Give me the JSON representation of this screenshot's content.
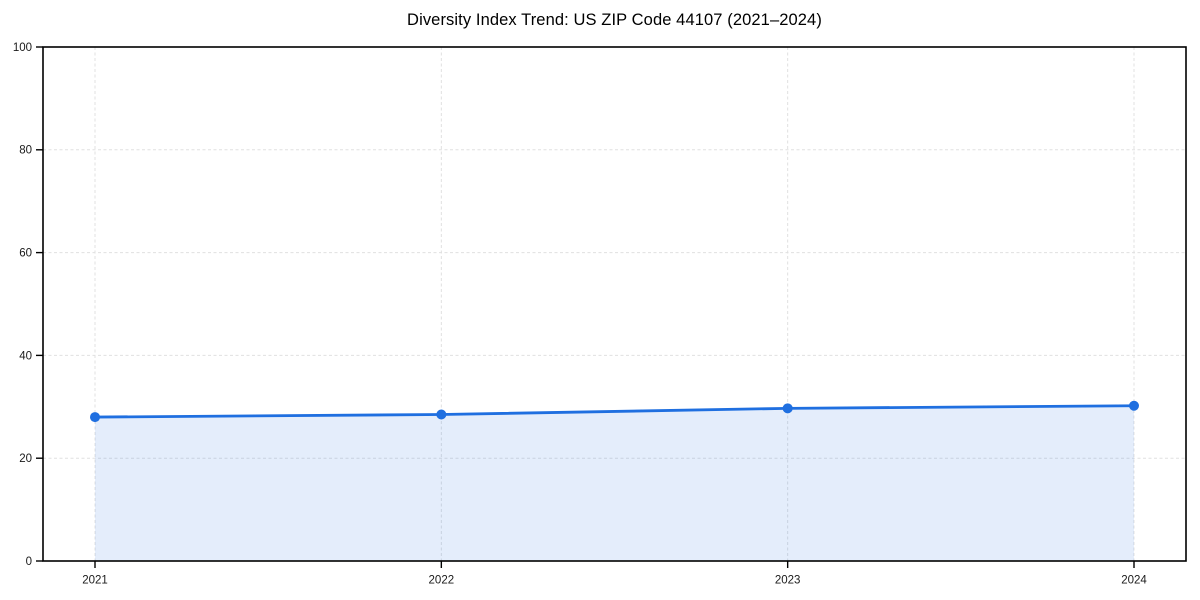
{
  "chart_data": {
    "type": "area",
    "title": "Diversity Index Trend: US ZIP Code 44107 (2021–2024)",
    "x": [
      "2021",
      "2022",
      "2023",
      "2024"
    ],
    "series": [
      {
        "name": "Diversity Index",
        "values": [
          28.0,
          28.5,
          29.7,
          30.2
        ]
      }
    ],
    "xlabel": "",
    "ylabel": "",
    "ylim": [
      0,
      100
    ],
    "yticks": [
      0,
      20,
      40,
      60,
      80,
      100
    ],
    "grid": "dashed-both-axes",
    "legend_position": "none",
    "marker": "circle",
    "colors": {
      "line": "#1f6fe0",
      "marker": "#1f6fe0",
      "fill": "#1f6fe0",
      "fill_opacity_pct": 12,
      "grid": "#e0e0e0",
      "axis": "#000000",
      "tick_text": "#1a1a1a",
      "background": "#ffffff"
    }
  }
}
